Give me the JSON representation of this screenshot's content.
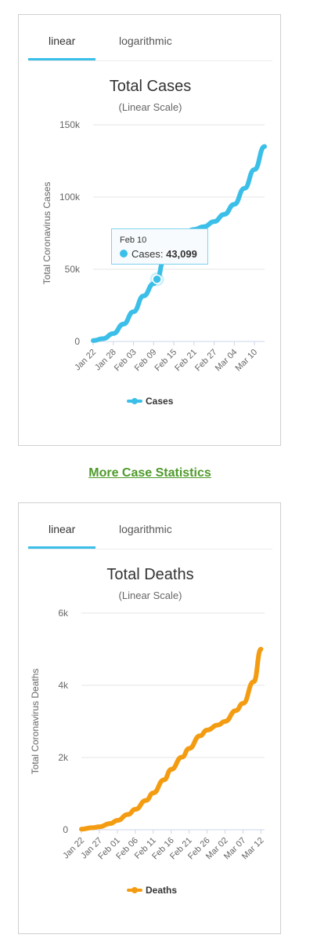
{
  "cases_card": {
    "tabs": [
      "linear",
      "logarithmic"
    ],
    "tooltip": {
      "date": "Feb 10",
      "series": "Cases",
      "value": "43,099"
    }
  },
  "more_link": "More Case Statistics",
  "deaths_card": {
    "tabs": [
      "linear",
      "logarithmic"
    ]
  },
  "chart_data": [
    {
      "type": "line",
      "title": "Total Cases",
      "subtitle": "(Linear Scale)",
      "ylabel": "Total Coronavirus Cases",
      "ylim": [
        0,
        150000
      ],
      "y_ticks": [
        "0",
        "50k",
        "100k",
        "150k"
      ],
      "x_ticks": [
        "Jan 22",
        "Jan 28",
        "Feb 03",
        "Feb 09",
        "Feb 15",
        "Feb 21",
        "Feb 27",
        "Mar 04",
        "Mar 10"
      ],
      "legend": "bottom",
      "color": "#3bbfe8",
      "series": [
        {
          "name": "Cases",
          "x": [
            "Jan 22",
            "Jan 25",
            "Jan 28",
            "Jan 31",
            "Feb 03",
            "Feb 06",
            "Feb 09",
            "Feb 10",
            "Feb 12",
            "Feb 15",
            "Feb 18",
            "Feb 21",
            "Feb 24",
            "Feb 27",
            "Mar 01",
            "Mar 04",
            "Mar 07",
            "Mar 10",
            "Mar 13"
          ],
          "values": [
            600,
            2000,
            5500,
            12000,
            20600,
            31500,
            40000,
            43099,
            56000,
            69000,
            75000,
            77500,
            79500,
            83000,
            88000,
            95000,
            106000,
            119000,
            135000
          ]
        }
      ]
    },
    {
      "type": "line",
      "title": "Total Deaths",
      "subtitle": "(Linear Scale)",
      "ylabel": "Total Coronavirus Deaths",
      "ylim": [
        0,
        6000
      ],
      "y_ticks": [
        "0",
        "2k",
        "4k",
        "6k"
      ],
      "x_ticks": [
        "Jan 22",
        "Jan 27",
        "Feb 01",
        "Feb 06",
        "Feb 11",
        "Feb 16",
        "Feb 21",
        "Feb 26",
        "Mar 02",
        "Mar 07",
        "Mar 12"
      ],
      "legend": "bottom",
      "color": "#f39c12",
      "series": [
        {
          "name": "Deaths",
          "x": [
            "Jan 22",
            "Jan 25",
            "Jan 27",
            "Jan 30",
            "Feb 01",
            "Feb 04",
            "Feb 06",
            "Feb 09",
            "Feb 11",
            "Feb 14",
            "Feb 16",
            "Feb 19",
            "Feb 21",
            "Feb 24",
            "Feb 26",
            "Feb 29",
            "Mar 02",
            "Mar 05",
            "Mar 07",
            "Mar 10",
            "Mar 12"
          ],
          "values": [
            17,
            56,
            81,
            170,
            259,
            425,
            565,
            813,
            1018,
            1383,
            1670,
            2012,
            2250,
            2600,
            2760,
            2900,
            3000,
            3300,
            3500,
            4100,
            5000
          ]
        }
      ]
    }
  ]
}
